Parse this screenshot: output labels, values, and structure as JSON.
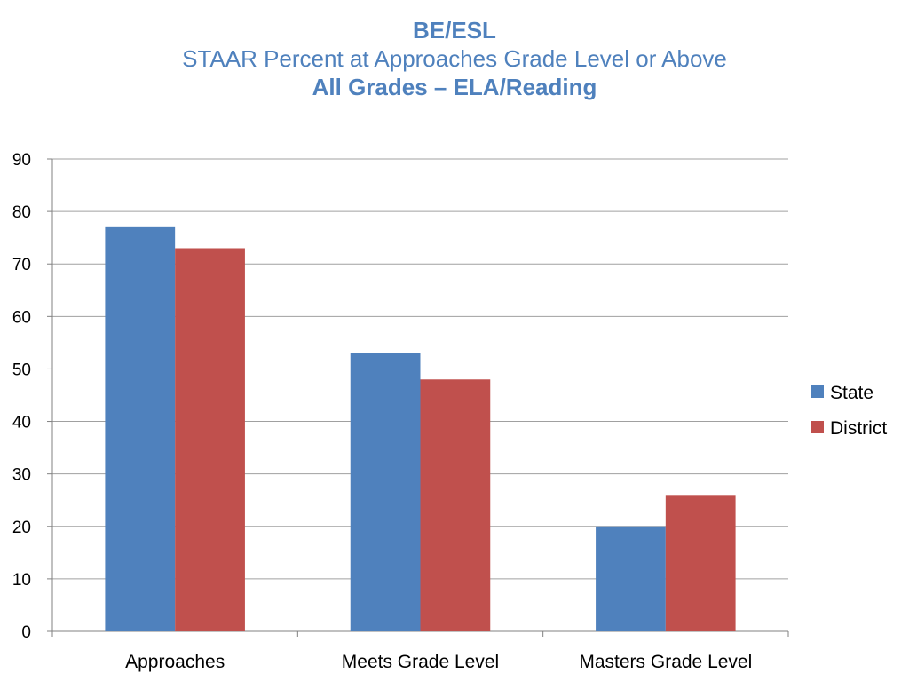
{
  "chart_data": {
    "type": "bar",
    "title": "BE/ESL",
    "subtitle": "STAAR Percent at Approaches Grade Level or Above",
    "subtitle2": "All Grades – ELA/Reading",
    "categories": [
      "Approaches",
      "Meets Grade Level",
      "Masters Grade Level"
    ],
    "series": [
      {
        "name": "State",
        "values": [
          77,
          53,
          20
        ],
        "color": "#4f81bd"
      },
      {
        "name": "District",
        "values": [
          73,
          48,
          26
        ],
        "color": "#c0504d"
      }
    ],
    "ylim": [
      0,
      90
    ],
    "yticks": [
      0,
      10,
      20,
      30,
      40,
      50,
      60,
      70,
      80,
      90
    ],
    "grid": true,
    "legend": "right",
    "title_color": "#4f81bd",
    "grid_color": "#a0a0a0"
  }
}
